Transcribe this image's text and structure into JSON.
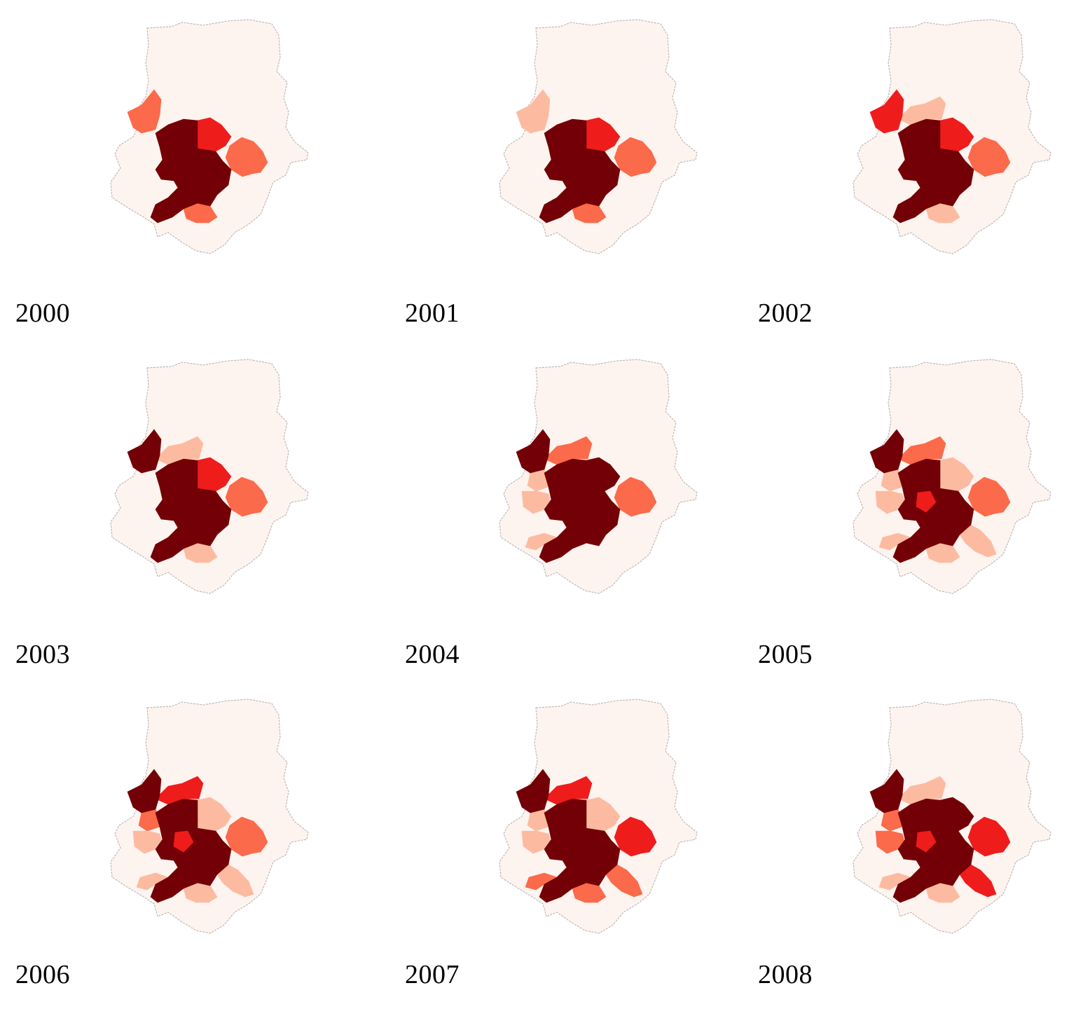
{
  "palette": {
    "outside": "#fdf3ef",
    "light": "#fcbba1",
    "medium": "#fb6a4a",
    "red": "#ef1c1c",
    "dark": "#730006"
  },
  "maps": [
    {
      "year": "2000",
      "regions": {
        "core": "dark",
        "northeast": "red",
        "east": "medium",
        "south": "medium",
        "northwest": "medium",
        "north": "outside",
        "westNorth": "outside",
        "west": "outside",
        "southwest": "outside",
        "southeast": "outside",
        "inner": "dark"
      }
    },
    {
      "year": "2001",
      "regions": {
        "core": "dark",
        "northeast": "red",
        "east": "medium",
        "south": "medium",
        "northwest": "light",
        "north": "outside",
        "westNorth": "outside",
        "west": "outside",
        "southwest": "outside",
        "southeast": "outside",
        "inner": "dark"
      }
    },
    {
      "year": "2002",
      "regions": {
        "core": "dark",
        "northeast": "red",
        "east": "medium",
        "south": "light",
        "northwest": "red",
        "north": "light",
        "westNorth": "outside",
        "west": "outside",
        "southwest": "outside",
        "southeast": "outside",
        "inner": "dark"
      }
    },
    {
      "year": "2003",
      "regions": {
        "core": "dark",
        "northeast": "red",
        "east": "medium",
        "south": "light",
        "northwest": "dark",
        "north": "light",
        "westNorth": "outside",
        "west": "outside",
        "southwest": "outside",
        "southeast": "outside",
        "inner": "dark"
      }
    },
    {
      "year": "2004",
      "regions": {
        "core": "dark",
        "northeast": "dark",
        "east": "medium",
        "south": "outside",
        "northwest": "dark",
        "north": "medium",
        "westNorth": "light",
        "west": "light",
        "southwest": "light",
        "southeast": "outside",
        "inner": "dark"
      }
    },
    {
      "year": "2005",
      "regions": {
        "core": "dark",
        "northeast": "light",
        "east": "medium",
        "south": "light",
        "northwest": "dark",
        "north": "medium",
        "westNorth": "light",
        "west": "light",
        "southwest": "light",
        "southeast": "light",
        "inner": "red"
      }
    },
    {
      "year": "2006",
      "regions": {
        "core": "dark",
        "northeast": "light",
        "east": "medium",
        "south": "light",
        "northwest": "dark",
        "north": "red",
        "westNorth": "medium",
        "west": "light",
        "southwest": "light",
        "southeast": "light",
        "inner": "red"
      }
    },
    {
      "year": "2007",
      "regions": {
        "core": "dark",
        "northeast": "light",
        "east": "red",
        "south": "medium",
        "northwest": "dark",
        "north": "red",
        "westNorth": "light",
        "west": "light",
        "southwest": "medium",
        "southeast": "medium",
        "inner": "dark"
      }
    },
    {
      "year": "2008",
      "regions": {
        "core": "dark",
        "northeast": "dark",
        "east": "red",
        "south": "light",
        "northwest": "dark",
        "north": "light",
        "westNorth": "medium",
        "west": "medium",
        "southwest": "light",
        "southeast": "red",
        "inner": "red"
      }
    }
  ]
}
